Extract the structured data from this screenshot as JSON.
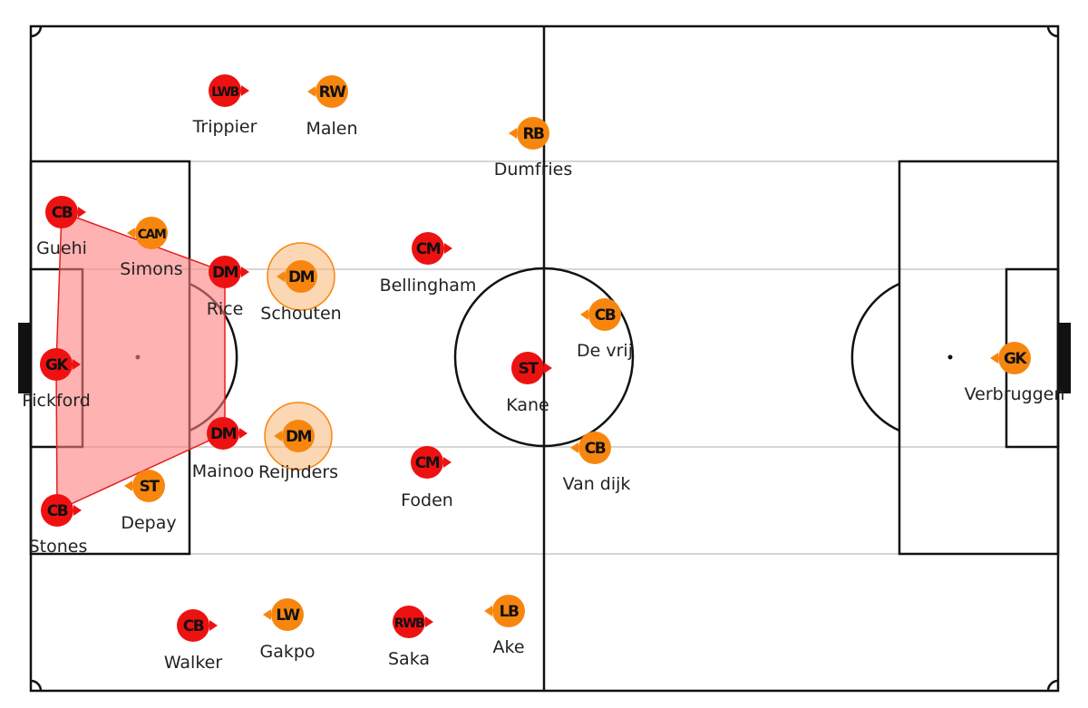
{
  "colors": {
    "team_a": "#ee1111",
    "team_b": "#f7860f",
    "team_b_highlight": "#f7b774",
    "shape_fill": "#ff7f7f",
    "shape_stroke": "#e41e1e",
    "pitch_lines": "#111111",
    "lane_lines": "#d6d6d6",
    "goal": "#111111"
  },
  "team_a": {
    "players": [
      {
        "key": "trippier",
        "role": "LWB",
        "name": "Trippier"
      },
      {
        "key": "guehi",
        "role": "CB",
        "name": "Guehi"
      },
      {
        "key": "rice",
        "role": "DM",
        "name": "Rice"
      },
      {
        "key": "bellingham",
        "role": "CM",
        "name": "Bellingham"
      },
      {
        "key": "pickford",
        "role": "GK",
        "name": "Pickford"
      },
      {
        "key": "kane",
        "role": "ST",
        "name": "Kane"
      },
      {
        "key": "mainoo",
        "role": "DM",
        "name": "Mainoo"
      },
      {
        "key": "foden",
        "role": "CM",
        "name": "Foden"
      },
      {
        "key": "stones",
        "role": "CB",
        "name": "Stones"
      },
      {
        "key": "walker",
        "role": "CB",
        "name": "Walker"
      },
      {
        "key": "saka",
        "role": "RWB",
        "name": "Saka"
      }
    ]
  },
  "team_b": {
    "players": [
      {
        "key": "malen",
        "role": "RW",
        "name": "Malen"
      },
      {
        "key": "dumfries",
        "role": "RB",
        "name": "Dumfries"
      },
      {
        "key": "simons",
        "role": "CAM",
        "name": "Simons"
      },
      {
        "key": "schouten",
        "role": "DM",
        "name": "Schouten"
      },
      {
        "key": "de-vrij",
        "role": "CB",
        "name": "De vrij"
      },
      {
        "key": "verbruggen",
        "role": "GK",
        "name": "Verbruggen"
      },
      {
        "key": "reijnders",
        "role": "DM",
        "name": "Reijnders"
      },
      {
        "key": "van-dijk",
        "role": "CB",
        "name": "Van dijk"
      },
      {
        "key": "depay",
        "role": "ST",
        "name": "Depay"
      },
      {
        "key": "gakpo",
        "role": "LW",
        "name": "Gakpo"
      },
      {
        "key": "ake",
        "role": "LB",
        "name": "Ake"
      }
    ]
  }
}
